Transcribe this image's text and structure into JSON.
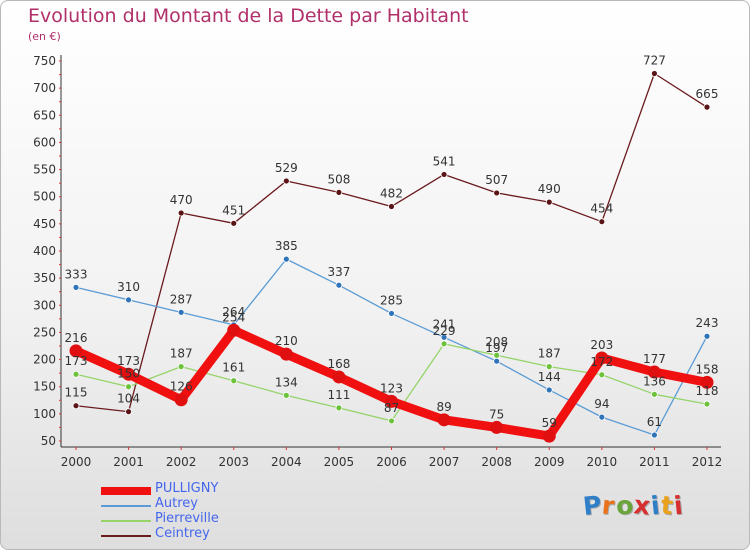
{
  "header": {
    "title": "Evolution du Montant de la Dette par Habitant",
    "unit": "(en €)"
  },
  "logo": {
    "text": "Proxiti",
    "letter_colors": [
      "#2f7ec8",
      "#e8731c",
      "#6aa53a",
      "#d62f2f",
      "#2f7ec8",
      "#e8a21c",
      "#d62f2f"
    ]
  },
  "chart_data": {
    "type": "line",
    "title": "Evolution du Montant de la Dette par Habitant",
    "ylabel": "(en €)",
    "xlabel": "",
    "x": [
      "2000",
      "2001",
      "2002",
      "2003",
      "2004",
      "2005",
      "2006",
      "2007",
      "2008",
      "2009",
      "2010",
      "2011",
      "2012"
    ],
    "ylim": [
      50,
      750
    ],
    "yticks": [
      50,
      100,
      150,
      200,
      250,
      300,
      350,
      400,
      450,
      500,
      550,
      600,
      650,
      700,
      750
    ],
    "grid": false,
    "legend_position": "bottom-left",
    "series": [
      {
        "name": "Ceintrey",
        "color": "#6b1a1e",
        "marker": "#5a1416",
        "values": [
          115,
          104,
          470,
          451,
          529,
          508,
          482,
          541,
          507,
          490,
          454,
          727,
          665
        ]
      },
      {
        "name": "Autrey",
        "color": "#5b9bd5",
        "marker": "#2f73b8",
        "values": [
          333,
          310,
          287,
          264,
          385,
          337,
          285,
          241,
          197,
          144,
          94,
          61,
          243
        ]
      },
      {
        "name": "Pierreville",
        "color": "#96d46a",
        "marker": "#6cc23a",
        "values": [
          173,
          150,
          187,
          161,
          134,
          111,
          87,
          229,
          208,
          187,
          172,
          136,
          118
        ]
      },
      {
        "name": "PULLIGNY",
        "color": "#f01010",
        "marker": "#e01010",
        "values": [
          216,
          173,
          126,
          254,
          210,
          168,
          123,
          89,
          75,
          59,
          203,
          177,
          158
        ]
      }
    ],
    "legend": [
      {
        "name": "PULLIGNY",
        "color": "#f01010",
        "label_color": "#4466ee"
      },
      {
        "name": "Autrey",
        "color": "#5b9bd5",
        "label_color": "#4466ee"
      },
      {
        "name": "Pierreville",
        "color": "#96d46a",
        "label_color": "#4466ee"
      },
      {
        "name": "Ceintrey",
        "color": "#6b1a1e",
        "label_color": "#4466ee"
      }
    ]
  }
}
